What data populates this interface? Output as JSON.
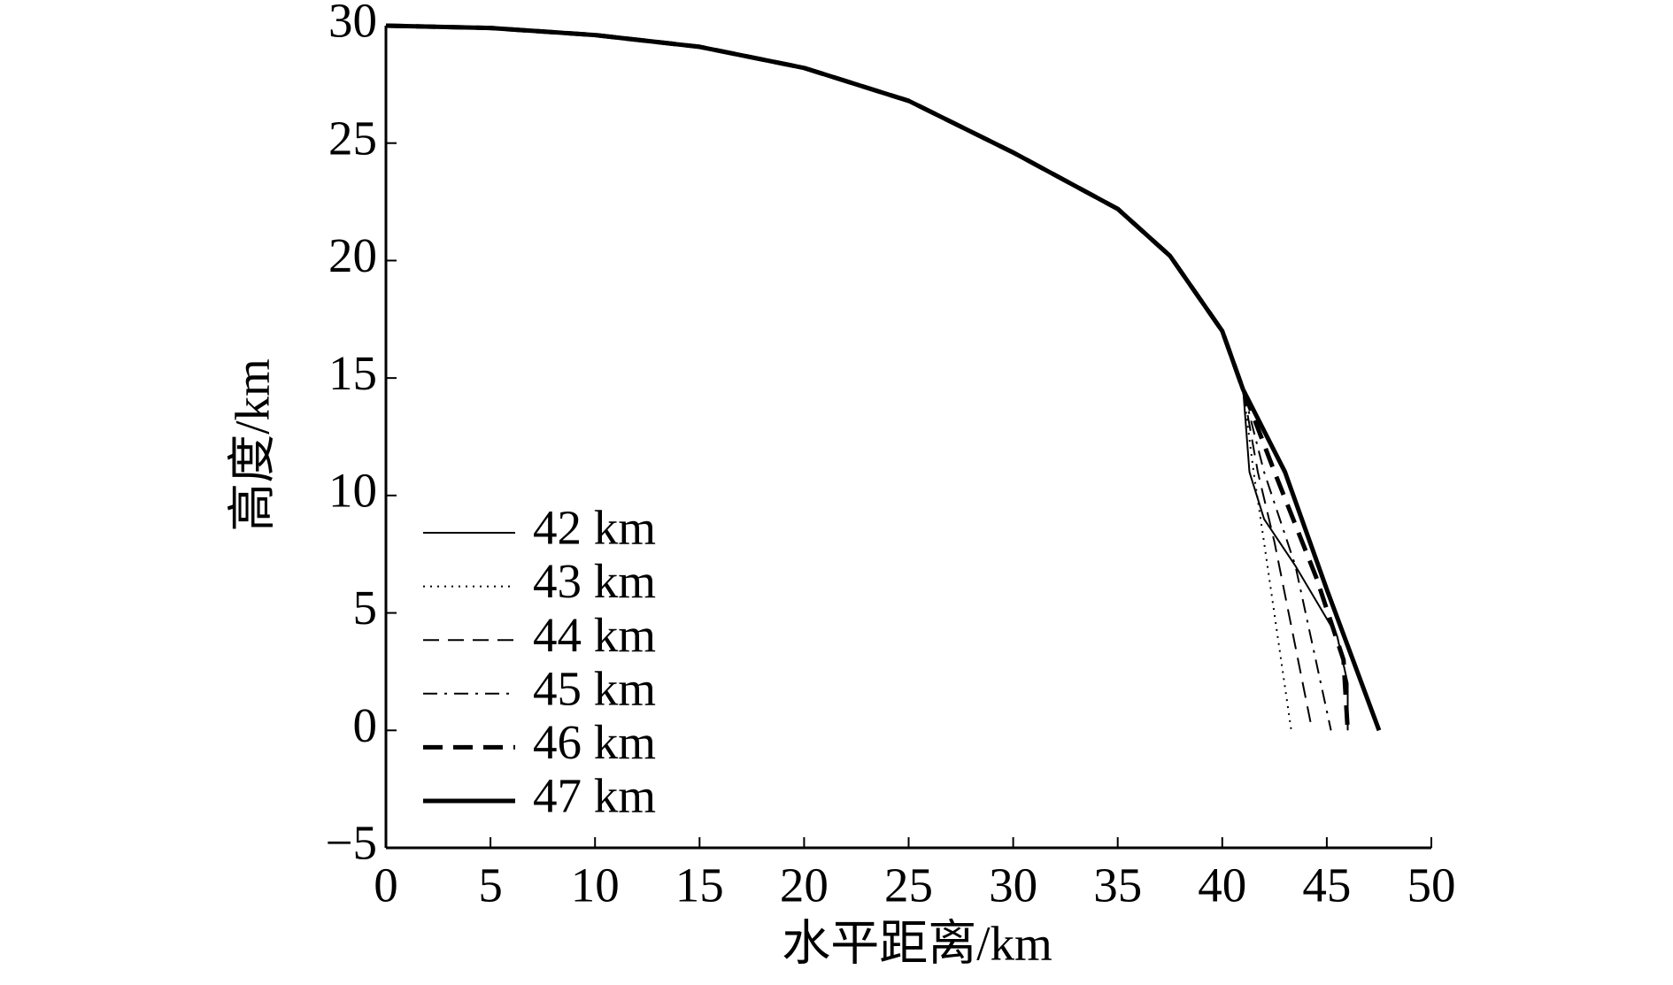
{
  "chart_data": {
    "type": "line",
    "xlabel": "水平距离/km",
    "ylabel": "高度/km",
    "xlim": [
      0,
      50
    ],
    "ylim": [
      -5,
      30
    ],
    "xticks": [
      0,
      5,
      10,
      15,
      20,
      25,
      30,
      35,
      40,
      45,
      50
    ],
    "yticks": [
      {
        "value": -5,
        "label": "−5"
      },
      0,
      5,
      10,
      15,
      20,
      25,
      30
    ],
    "legend": "lower left",
    "series": [
      {
        "name": "42 km",
        "color": "#000000",
        "dash": "solid",
        "line_width": 2,
        "x": [
          0,
          5,
          10,
          15,
          20,
          25,
          30,
          35,
          37.5,
          40,
          41,
          41.3,
          42,
          43.5,
          44.5,
          45.5,
          46,
          46
        ],
        "values": [
          30,
          29.9,
          29.6,
          29.1,
          28.2,
          26.8,
          24.6,
          22.2,
          20.2,
          17,
          14.5,
          11,
          9,
          7,
          5.5,
          4,
          2,
          0
        ]
      },
      {
        "name": "43 km",
        "color": "#000000",
        "dash": "dotted",
        "line_width": 2,
        "x": [
          0,
          5,
          10,
          15,
          20,
          25,
          30,
          35,
          37.5,
          40,
          41,
          41.5,
          42,
          43.3
        ],
        "values": [
          30,
          29.9,
          29.6,
          29.1,
          28.2,
          26.8,
          24.6,
          22.2,
          20.2,
          17,
          14.5,
          11,
          8,
          0
        ]
      },
      {
        "name": "44 km",
        "color": "#000000",
        "dash": "dashed",
        "line_width": 2,
        "x": [
          0,
          5,
          10,
          15,
          20,
          25,
          30,
          35,
          37.5,
          40,
          41,
          41.7,
          42.5,
          44.3
        ],
        "values": [
          30,
          29.9,
          29.6,
          29.1,
          28.2,
          26.8,
          24.6,
          22.2,
          20.2,
          17,
          14.5,
          11,
          8,
          0
        ]
      },
      {
        "name": "45 km",
        "color": "#000000",
        "dash": "dashdot",
        "line_width": 2,
        "x": [
          0,
          5,
          10,
          15,
          20,
          25,
          30,
          35,
          37.5,
          40,
          41,
          42,
          43.5,
          45.2
        ],
        "values": [
          30,
          29.9,
          29.6,
          29.1,
          28.2,
          26.8,
          24.6,
          22.2,
          20.2,
          17,
          14.5,
          11,
          7,
          0
        ]
      },
      {
        "name": "46 km",
        "color": "#000000",
        "dash": "dashed",
        "line_width": 5,
        "x": [
          0,
          5,
          10,
          15,
          20,
          25,
          30,
          35,
          37.5,
          40,
          41,
          42.5,
          44.5,
          45.8,
          46
        ],
        "values": [
          30,
          29.9,
          29.6,
          29.1,
          28.2,
          26.8,
          24.6,
          22.2,
          20.2,
          17,
          14.5,
          11,
          6.5,
          3,
          0
        ]
      },
      {
        "name": "47 km",
        "color": "#000000",
        "dash": "solid",
        "line_width": 5,
        "x": [
          0,
          5,
          10,
          15,
          20,
          25,
          30,
          35,
          37.5,
          40,
          41,
          43,
          45,
          47.5
        ],
        "values": [
          30,
          29.9,
          29.6,
          29.1,
          28.2,
          26.8,
          24.6,
          22.2,
          20.2,
          17,
          14.5,
          11,
          6,
          0
        ]
      }
    ]
  }
}
